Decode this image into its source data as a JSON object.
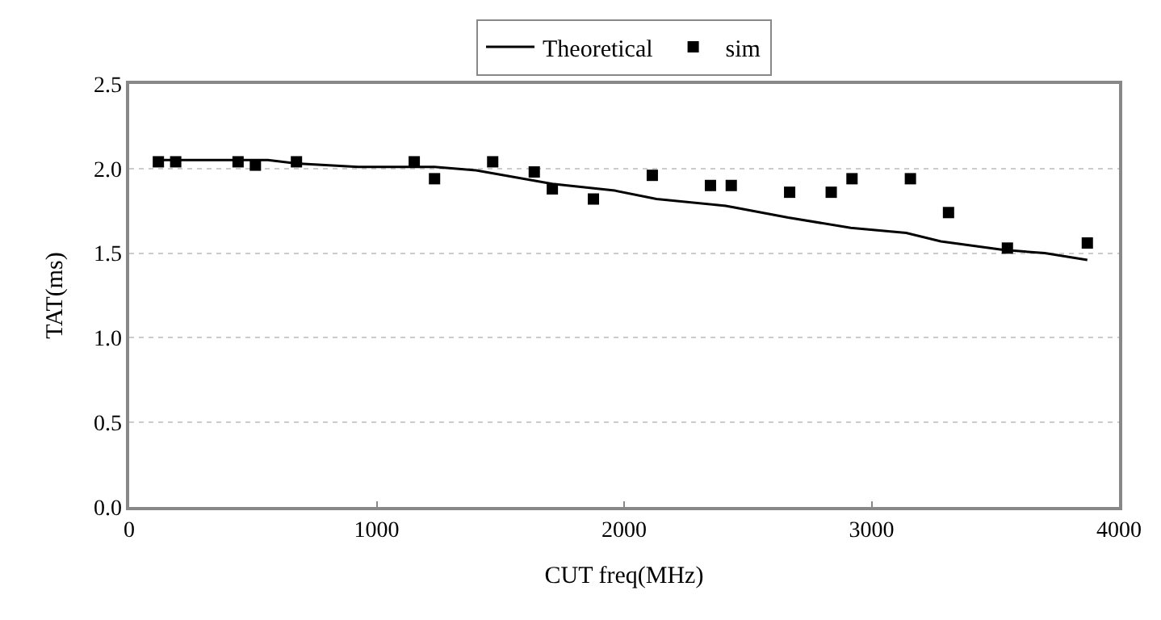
{
  "chart_data": {
    "type": "line",
    "xlabel": "CUT freq(MHz)",
    "ylabel": "TAT(ms)",
    "xlim": [
      0,
      4000
    ],
    "xticks": [
      0,
      1000,
      2000,
      3000,
      4000
    ],
    "ylim": [
      0,
      2.5
    ],
    "yticks": [
      {
        "value": 0,
        "label": "0.0"
      },
      {
        "value": 0.5,
        "label": "0.5"
      },
      {
        "value": 1,
        "label": "1.0"
      },
      {
        "value": 1.5,
        "label": "1.5"
      },
      {
        "value": 2,
        "label": "2.0"
      },
      {
        "value": 2.5,
        "label": "2.5"
      }
    ],
    "grid": "y",
    "legend": "top",
    "series": [
      {
        "name": "Theoretical",
        "color": "#000000",
        "marker": "none",
        "line_style": "solid",
        "x": [
          118,
          561,
          676,
          925,
          1234,
          1402,
          1710,
          1962,
          2131,
          2411,
          2663,
          2916,
          3140,
          3280,
          3532,
          3700,
          3872
        ],
        "values": [
          2.05,
          2.05,
          2.03,
          2.01,
          2.01,
          1.99,
          1.91,
          1.87,
          1.82,
          1.78,
          1.71,
          1.65,
          1.62,
          1.57,
          1.52,
          1.5,
          1.46
        ]
      },
      {
        "name": "sim",
        "type": "scatter",
        "color": "#000000",
        "marker": "square",
        "x": [
          118,
          188,
          440,
          510,
          676,
          1152,
          1234,
          1469,
          1637,
          1710,
          1876,
          2114,
          2349,
          2433,
          2669,
          2837,
          2921,
          3157,
          3311,
          3549,
          3872
        ],
        "values": [
          2.04,
          2.04,
          2.04,
          2.02,
          2.04,
          2.04,
          1.94,
          2.04,
          1.98,
          1.88,
          1.82,
          1.96,
          1.9,
          1.9,
          1.86,
          1.86,
          1.94,
          1.94,
          1.74,
          1.53,
          1.56
        ]
      }
    ]
  }
}
